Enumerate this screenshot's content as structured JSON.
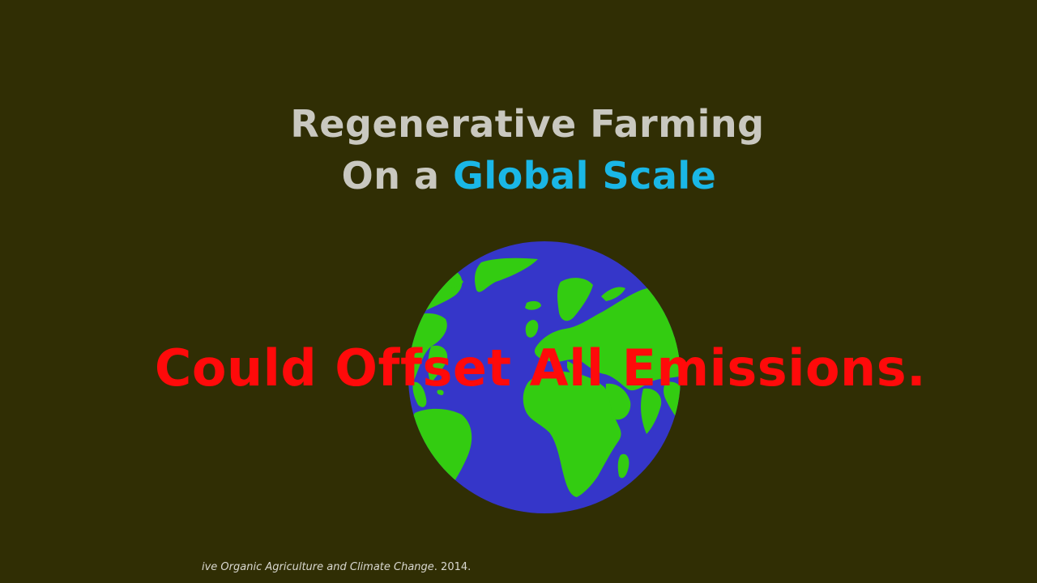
{
  "slide": {
    "title_line1": "Regenerative Farming",
    "title_line2_prefix": "On a ",
    "title_line2_accent": "Global Scale",
    "overlay_text": "Could Offset All Emissions.",
    "citation_italic": "ive Organic Agriculture and Climate Change",
    "citation_rest": ". 2014."
  },
  "colors": {
    "background": "#302e04",
    "title": "#c9c8c0",
    "accent": "#1ab7e6",
    "overlay": "#ff0a0a",
    "ocean": "#3536c9",
    "land": "#33cc11"
  },
  "icons": {
    "globe": "earth-globe-icon"
  }
}
